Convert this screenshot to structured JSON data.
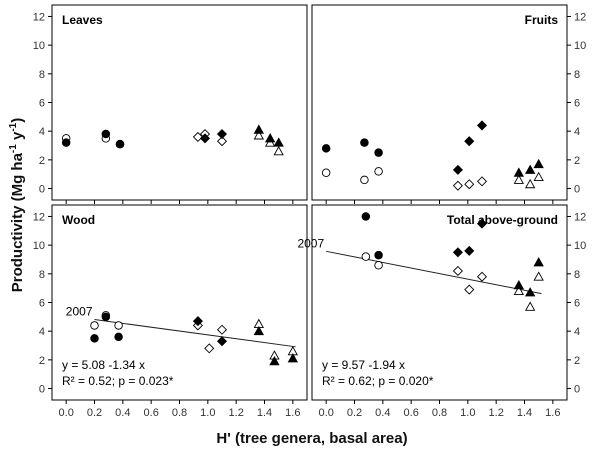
{
  "y_axis_title": "Productivity (Mg ha",
  "y_axis_exp1": "-1",
  "y_axis_mid": " y",
  "y_axis_exp2": "-1",
  "y_axis_close": ")",
  "x_axis_title": "H' (tree genera, basal area)",
  "chart_data": [
    {
      "type": "scatter",
      "title": "Leaves",
      "title_align": "left",
      "xlim": [
        -0.1,
        1.7
      ],
      "ylim": [
        -0.8,
        12.8
      ],
      "xticks": [
        "0.0",
        "0.2",
        "0.4",
        "0.6",
        "0.8",
        "1.0",
        "1.2",
        "1.4",
        "1.6"
      ],
      "yticks": [
        "0",
        "2",
        "4",
        "6",
        "8",
        "10",
        "12"
      ],
      "series": [
        {
          "name": "filled-circle",
          "points": [
            [
              0.0,
              3.2
            ],
            [
              0.28,
              3.8
            ],
            [
              0.38,
              3.1
            ]
          ]
        },
        {
          "name": "open-circle",
          "points": [
            [
              0.0,
              3.5
            ],
            [
              0.28,
              3.5
            ],
            [
              0.38,
              3.1
            ]
          ]
        },
        {
          "name": "open-diamond",
          "points": [
            [
              0.93,
              3.6
            ],
            [
              0.98,
              3.8
            ],
            [
              1.1,
              3.3
            ]
          ]
        },
        {
          "name": "filled-diamond",
          "points": [
            [
              0.98,
              3.5
            ],
            [
              1.1,
              3.8
            ]
          ]
        },
        {
          "name": "filled-triangle",
          "points": [
            [
              1.36,
              4.1
            ],
            [
              1.44,
              3.5
            ],
            [
              1.5,
              3.2
            ]
          ]
        },
        {
          "name": "open-triangle",
          "points": [
            [
              1.36,
              3.7
            ],
            [
              1.44,
              3.2
            ],
            [
              1.5,
              2.6
            ]
          ]
        }
      ]
    },
    {
      "type": "scatter",
      "title": "Fruits",
      "title_align": "right",
      "xlim": [
        -0.1,
        1.7
      ],
      "ylim": [
        -0.8,
        12.8
      ],
      "xticks": [
        "0.0",
        "0.2",
        "0.4",
        "0.6",
        "0.8",
        "1.0",
        "1.2",
        "1.4",
        "1.6"
      ],
      "yticks": [
        "0",
        "2",
        "4",
        "6",
        "8",
        "10",
        "12"
      ],
      "series": [
        {
          "name": "filled-circle",
          "points": [
            [
              0.0,
              2.8
            ],
            [
              0.27,
              3.2
            ],
            [
              0.37,
              2.5
            ]
          ]
        },
        {
          "name": "open-circle",
          "points": [
            [
              0.0,
              1.1
            ],
            [
              0.27,
              0.6
            ],
            [
              0.37,
              1.2
            ]
          ]
        },
        {
          "name": "filled-diamond",
          "points": [
            [
              0.93,
              1.3
            ],
            [
              1.01,
              3.3
            ],
            [
              1.1,
              4.4
            ]
          ]
        },
        {
          "name": "open-diamond",
          "points": [
            [
              0.93,
              0.2
            ],
            [
              1.01,
              0.3
            ],
            [
              1.1,
              0.5
            ]
          ]
        },
        {
          "name": "filled-triangle",
          "points": [
            [
              1.36,
              1.1
            ],
            [
              1.44,
              1.3
            ],
            [
              1.5,
              1.7
            ]
          ]
        },
        {
          "name": "open-triangle",
          "points": [
            [
              1.36,
              0.6
            ],
            [
              1.44,
              0.3
            ],
            [
              1.5,
              0.8
            ]
          ]
        }
      ]
    },
    {
      "type": "scatter",
      "title": "Wood",
      "title_align": "left",
      "xlim": [
        -0.1,
        1.7
      ],
      "ylim": [
        -0.8,
        12.8
      ],
      "xticks": [
        "0.0",
        "0.2",
        "0.4",
        "0.6",
        "0.8",
        "1.0",
        "1.2",
        "1.4",
        "1.6"
      ],
      "yticks": [
        "0",
        "2",
        "4",
        "6",
        "8",
        "10",
        "12"
      ],
      "series": [
        {
          "name": "filled-circle",
          "points": [
            [
              0.2,
              3.5
            ],
            [
              0.28,
              5.0
            ],
            [
              0.37,
              3.6
            ]
          ]
        },
        {
          "name": "open-circle",
          "points": [
            [
              0.2,
              4.4
            ],
            [
              0.28,
              5.1
            ],
            [
              0.37,
              4.4
            ]
          ]
        },
        {
          "name": "filled-diamond",
          "points": [
            [
              0.93,
              4.7
            ],
            [
              1.1,
              3.3
            ]
          ]
        },
        {
          "name": "open-diamond",
          "points": [
            [
              0.93,
              4.4
            ],
            [
              1.01,
              2.8
            ],
            [
              1.1,
              4.1
            ]
          ]
        },
        {
          "name": "filled-triangle",
          "points": [
            [
              1.36,
              4.0
            ],
            [
              1.47,
              1.9
            ],
            [
              1.6,
              2.1
            ]
          ]
        },
        {
          "name": "open-triangle",
          "points": [
            [
              1.36,
              4.5
            ],
            [
              1.47,
              2.3
            ],
            [
              1.6,
              2.6
            ]
          ]
        }
      ],
      "trend_line": {
        "x": [
          0.2,
          1.62
        ],
        "slope": -1.34,
        "intercept": 5.08
      },
      "line_label": "2007",
      "equation": "y = 5.08 -1.34 x",
      "stats": "R² = 0.52; p = 0.023*"
    },
    {
      "type": "scatter",
      "title": "Total above-ground",
      "title_align": "right",
      "xlim": [
        -0.1,
        1.7
      ],
      "ylim": [
        -0.8,
        12.8
      ],
      "xticks": [
        "0.0",
        "0.2",
        "0.4",
        "0.6",
        "0.8",
        "1.0",
        "1.2",
        "1.4",
        "1.6"
      ],
      "yticks": [
        "0",
        "2",
        "4",
        "6",
        "8",
        "10",
        "12"
      ],
      "series": [
        {
          "name": "filled-circle",
          "points": [
            [
              0.28,
              12.0
            ],
            [
              0.37,
              9.3
            ]
          ]
        },
        {
          "name": "open-circle",
          "points": [
            [
              0.28,
              9.2
            ],
            [
              0.37,
              8.6
            ]
          ]
        },
        {
          "name": "filled-diamond",
          "points": [
            [
              0.93,
              9.5
            ],
            [
              1.01,
              9.6
            ],
            [
              1.1,
              11.5
            ]
          ]
        },
        {
          "name": "open-diamond",
          "points": [
            [
              0.93,
              8.2
            ],
            [
              1.01,
              6.9
            ],
            [
              1.1,
              7.8
            ]
          ]
        },
        {
          "name": "filled-triangle",
          "points": [
            [
              1.36,
              7.2
            ],
            [
              1.44,
              6.7
            ],
            [
              1.5,
              8.8
            ]
          ]
        },
        {
          "name": "open-triangle",
          "points": [
            [
              1.36,
              6.8
            ],
            [
              1.44,
              5.7
            ],
            [
              1.5,
              7.8
            ]
          ]
        }
      ],
      "trend_line": {
        "x": [
          0.0,
          1.52
        ],
        "slope": -1.94,
        "intercept": 9.57
      },
      "line_label": "2007",
      "equation": "y = 9.57 -1.94 x",
      "stats": "R² = 0.62; p = 0.020*"
    }
  ]
}
